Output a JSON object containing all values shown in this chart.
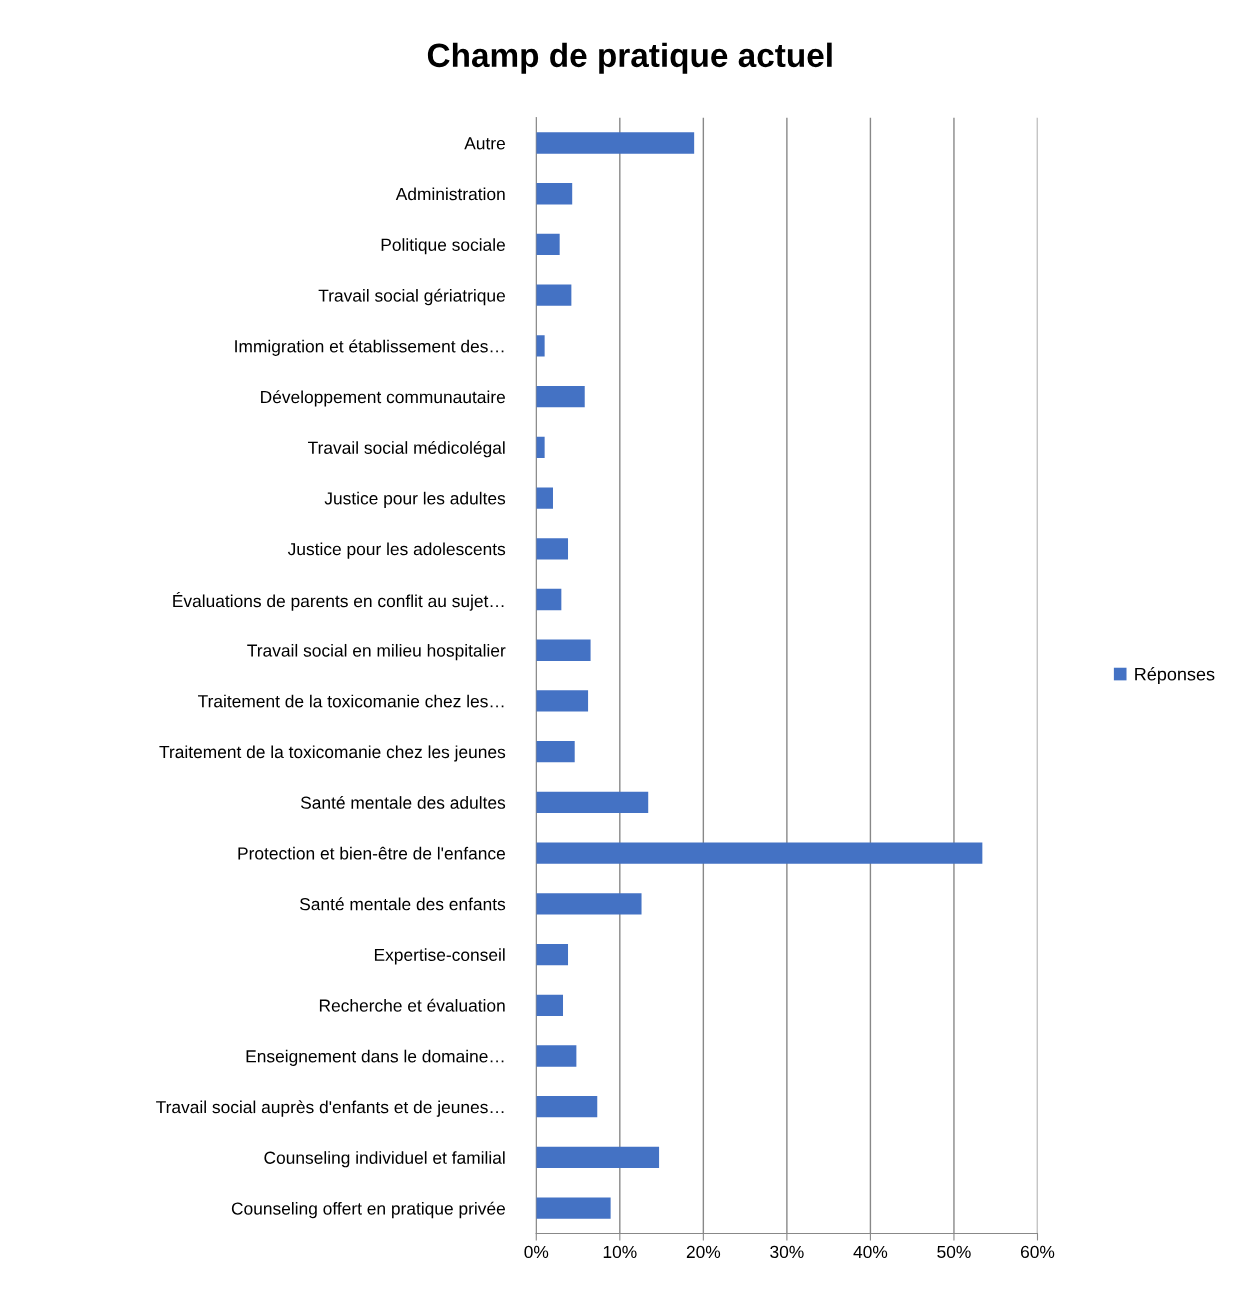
{
  "chart_data": {
    "type": "bar",
    "orientation": "horizontal",
    "title": "Champ de pratique actuel",
    "categories": [
      "Autre",
      "Administration",
      "Politique sociale",
      "Travail social gériatrique",
      "Immigration et établissement des…",
      "Développement communautaire",
      "Travail social médicolégal",
      "Justice pour les adultes",
      "Justice pour les adolescents",
      "Évaluations de parents en conflit au sujet…",
      "Travail social en milieu hospitalier",
      "Traitement de la toxicomanie chez les…",
      "Traitement de la toxicomanie chez les jeunes",
      "Santé mentale des adultes",
      "Protection et bien-être de l'enfance",
      "Santé mentale des enfants",
      "Expertise-conseil",
      "Recherche et évaluation",
      "Enseignement dans le domaine…",
      "Travail social auprès d'enfants et de jeunes…",
      "Counseling individuel et familial",
      "Counseling offert en pratique privée"
    ],
    "series": [
      {
        "name": "Réponses",
        "color": "#4472c4",
        "values": [
          18.9,
          4.3,
          2.8,
          4.2,
          1.0,
          5.8,
          1.0,
          2.0,
          3.8,
          3.0,
          6.5,
          6.2,
          4.6,
          13.4,
          53.4,
          12.6,
          3.8,
          3.2,
          4.8,
          7.3,
          14.7,
          8.9
        ]
      }
    ],
    "xlim": [
      0,
      60
    ],
    "xticks": [
      {
        "value": 0,
        "label": "0%"
      },
      {
        "value": 10,
        "label": "10%"
      },
      {
        "value": 20,
        "label": "20%"
      },
      {
        "value": 30,
        "label": "30%"
      },
      {
        "value": 40,
        "label": "40%"
      },
      {
        "value": 50,
        "label": "50%"
      },
      {
        "value": 60,
        "label": "60%"
      }
    ],
    "grid": "x",
    "legend": "right"
  }
}
